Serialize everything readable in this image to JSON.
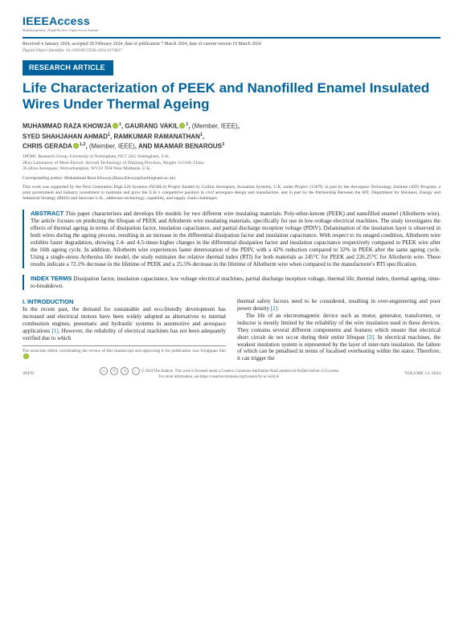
{
  "journal": {
    "name": "IEEEAccess",
    "tagline": "Multidisciplinary | Rapid Review | Open Access Journal"
  },
  "meta": {
    "received": "Received 4 January 2024, accepted 28 February 2024, date of publication 7 March 2024, date of current version 19 March 2024.",
    "doi": "Digital Object Identifier 10.1109/ACCESS.2024.3374637"
  },
  "badge": "RESEARCH ARTICLE",
  "title": "Life Characterization of PEEK and Nanofilled Enamel Insulated Wires Under Thermal Ageing",
  "authors_html": "MUHAMMAD RAZA KHOWJA<span class='orcid'></span><span class='sup'>1</span>, GAURANG VAKIL<span class='orcid'></span><span class='sup'>1</span>, <span class='mem'>(Member, IEEE)</span>,<br>SYED SHAHJAHAN AHMAD<span class='sup'>1</span>, RAMKUMAR RAMANATHAN<span class='sup'>1</span>,<br>CHRIS GERADA<span class='orcid'></span><span class='sup'>1,2</span>, <span class='mem'>(Member, IEEE)</span>, AND MAAMAR BENAROUS<span class='sup'>3</span>",
  "affil": {
    "a1": "1PEMC Research Group, University of Nottingham, NG7 2ZG Nottingham, U.K.",
    "a2": "2Key Laboratory of More Electric Aircraft Technology of Zhejiang Province, Ningbo 315100, China",
    "a3": "3Collins Aerospace, Wolverhampton, WV10 7EH West Midlands, U.K."
  },
  "corresp": "Corresponding author: Muhammad Raza Khowja (Raza.Khowja@nottingham.ac.uk)",
  "funding": "This work was supported by the Next Generation High Lift Systems (NGHLS) Project funded by Collins Aerospace, Actuation Systems, U.K. under Project 113079, in part by the Aerospace Technology Institute (ATI) Program, a joint government and industry investment to maintain and grow the U.K.'s competitive position in civil aerospace design and manufacture, and in part by the Partnership Between the ATI, Department for Business, Energy and Industrial Strategy (BEIS) and Innovate U.K., addresses technology, capability, and supply chain challenges.",
  "abstract": {
    "label": "ABSTRACT",
    "text": "This paper characterizes and develops life models for two different wire insulating materials: Poly-ether-ketone (PEEK) and nanofilled enamel (Allotherm wire). The article focuses on predicting the lifespan of PEEK and Allotherm wire insulating materials, specifically for use in low-voltage electrical machines. The study investigates the effects of thermal ageing in terms of dissipation factor, insulation capacitance, and partial discharge inception voltage (PDIV). Delamination of the insulation layer is observed in both wires during the ageing process, resulting in an increase in the differential dissipation factor and insulation capacitance. With respect to its unaged condition, Allotherm wire exhibits faster degradation, showing 2.4- and 4.5-times higher changes in the differential dissipation factor and insulation capacitance respectively compared to PEEK wire after the 16th ageing cycle. In addition, Allotherm wire experiences faster deterioration of the PDIV, with a 42% reduction compared to 32% in PEEK after the same ageing cycle. Using a single-stress Arrhenius life model, the study estimates the relative thermal index (RTI) for both materials as 245°C for PEEK and 226.25°C for Allotherm wire. These results indicate a 72.1% decrease in the lifetime of PEEK and a 25.5% decrease in the lifetime of Allotherm wire when compared to the manufacturer's RTI specification."
  },
  "index": {
    "label": "INDEX TERMS",
    "text": "Dissipation factor, insulation capacitance, low voltage electrical machines, partial discharge inception voltage, thermal life, thermal index, thermal ageing, time-to-breakdown."
  },
  "section": {
    "num": "I.",
    "title": "INTRODUCTION"
  },
  "col1": {
    "p1": "In the recent past, the demand for sustainable and eco-friendly development has increased and electrical motors have been widely adopted as alternatives to internal combustion engines, pneumatic and hydraulic systems in automotive and aerospace applications [1]. However, the reliability of electrical machines has not been adequately verified due to which",
    "assoc": "The associate editor coordinating the review of this manuscript and approving it for publication was Yongquan Sun"
  },
  "col2": {
    "p1": "thermal safety factors need to be considered, resulting in over-engineering and poor power density [2].",
    "p2": "The life of an electromagnetic device such as motor, generator, transformer, or inductor is mostly limited by the reliability of the wire insulation used in these devices. They contains several different components and features which ensure that electrical short circuit do not occur during their entire lifespan [3]. In electrical machines, the weakest insulation system is represented by the layer of inter-turn insulation, the failure of which can be penalised in terms of localised overheating within the stator. Therefore, it can trigger the"
  },
  "footer": {
    "pagenum": "39470",
    "license": "© 2024 The Authors. This work is licensed under a Creative Commons Attribution-NonCommercial-NoDerivatives 4.0 License.",
    "license2": "For more information, see https://creativecommons.org/licenses/by-nc-nd/4.0/",
    "volume": "VOLUME 12, 2024"
  }
}
